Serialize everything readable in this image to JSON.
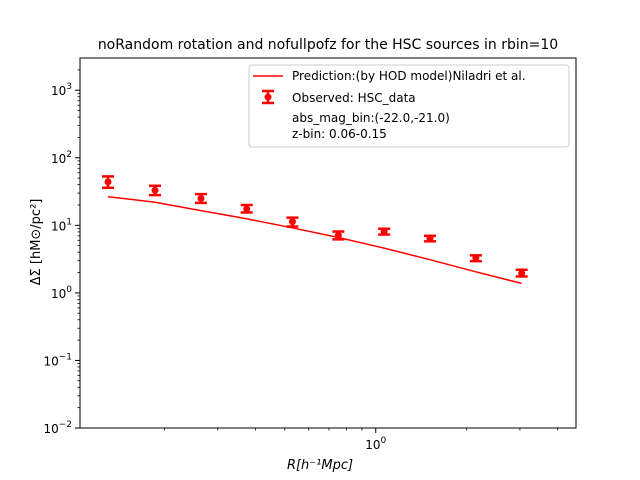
{
  "chart_data": {
    "type": "scatter",
    "title": "noRandom rotation and nofullpofz for the HSC sources in rbin=10",
    "xlabel": "R[h⁻¹Mpc]",
    "ylabel": "ΔΣ [hM⊙/pc²]",
    "xscale": "log",
    "yscale": "log",
    "xlim": [
      0.105,
      4.6
    ],
    "ylim": [
      0.01,
      3000
    ],
    "grid": false,
    "legend_position": "top-right",
    "x_tick_labels": [
      {
        "value": 1,
        "label": "10",
        "exp": "0"
      }
    ],
    "y_tick_labels": [
      {
        "value": 0.01,
        "label": "10",
        "exp": "−2"
      },
      {
        "value": 0.1,
        "label": "10",
        "exp": "−1"
      },
      {
        "value": 1,
        "label": "10",
        "exp": "0"
      },
      {
        "value": 10,
        "label": "10",
        "exp": "1"
      },
      {
        "value": 100,
        "label": "10",
        "exp": "2"
      },
      {
        "value": 1000,
        "label": "10",
        "exp": "3"
      }
    ],
    "series": [
      {
        "name": "Prediction:(by HOD model)Niladri et al.",
        "kind": "line",
        "color": "#ff0000",
        "x": [
          0.13,
          0.186,
          0.264,
          0.374,
          0.53,
          0.752,
          1.066,
          1.512,
          2.144,
          3.04
        ],
        "y": [
          26.5,
          22.0,
          16.5,
          12.5,
          9.2,
          6.6,
          4.6,
          3.1,
          2.05,
          1.38
        ]
      },
      {
        "name": "Observed: HSC_data",
        "kind": "errorbar",
        "color": "#ff0000",
        "x": [
          0.13,
          0.186,
          0.264,
          0.374,
          0.53,
          0.752,
          1.066,
          1.512,
          2.144,
          3.04
        ],
        "y": [
          44,
          33,
          25,
          17.5,
          11.3,
          7.1,
          8.1,
          6.4,
          3.3,
          1.95
        ],
        "yerr_low": [
          36,
          28,
          21.5,
          15.5,
          9.6,
          6.2,
          7.3,
          5.8,
          2.95,
          1.75
        ],
        "yerr_high": [
          53,
          38.5,
          29,
          20,
          13,
          8.1,
          8.9,
          7.0,
          3.6,
          2.2
        ]
      }
    ],
    "annotations": [
      "abs_mag_bin:(-22.0,-21.0)",
      "z-bin: 0.06-0.15"
    ]
  }
}
